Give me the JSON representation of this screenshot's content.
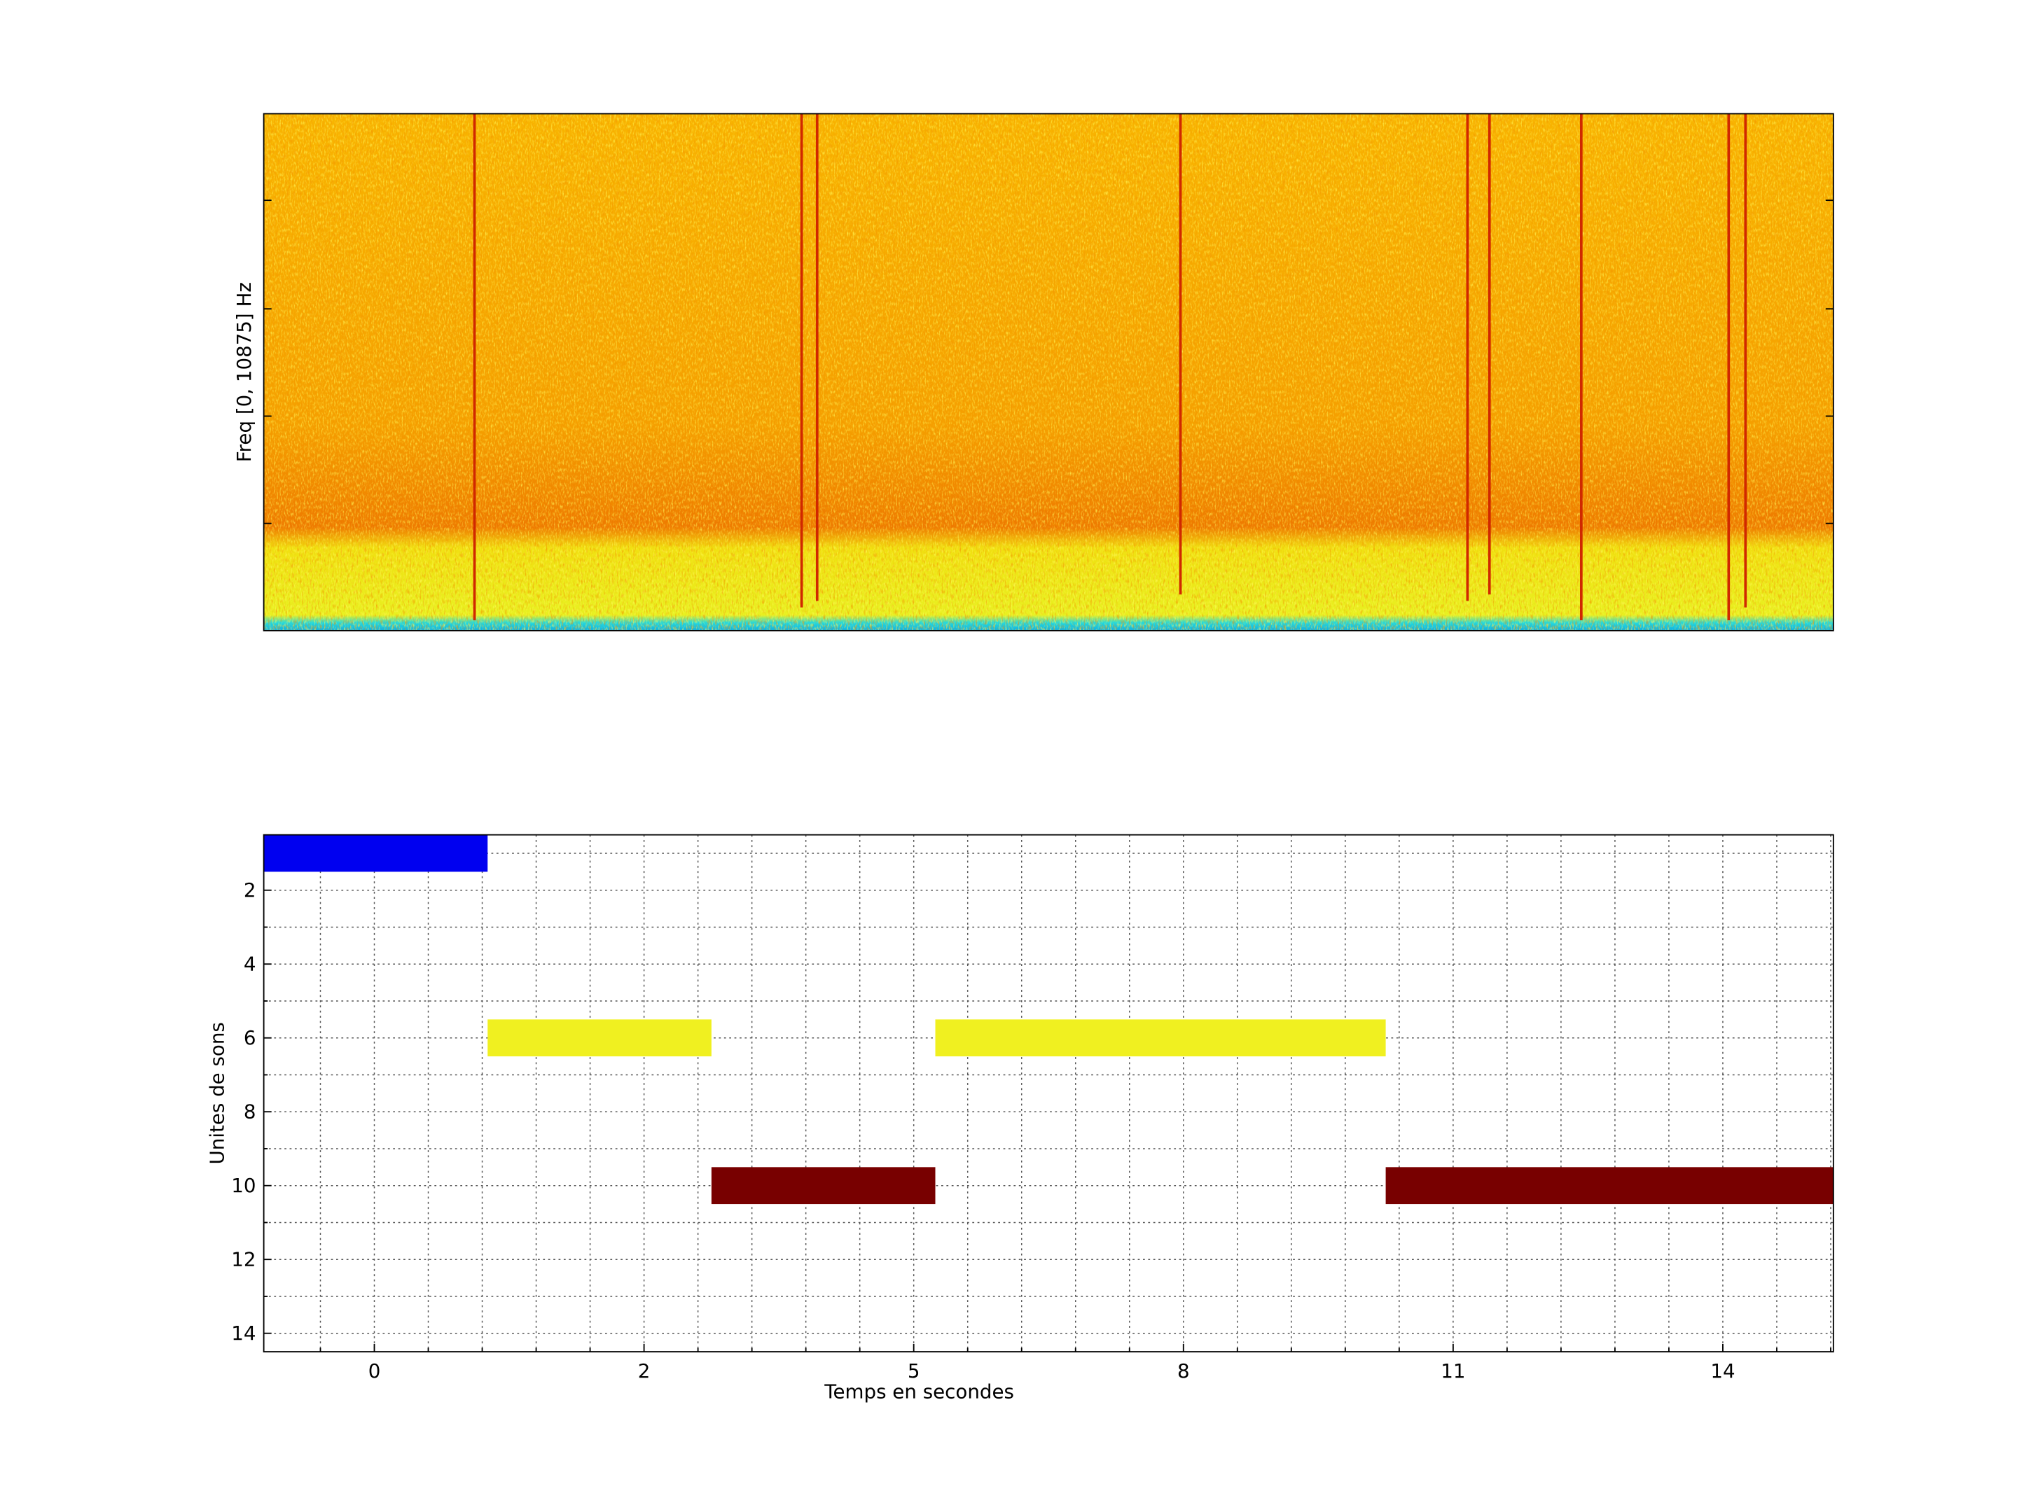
{
  "spectrogram": {
    "ylabel": "Freq [0, 10875] Hz"
  },
  "chart_data": {
    "type": "gantt",
    "xlabel": "Temps en secondes",
    "ylabel": "Unites de sons",
    "xlim": [
      -0.41,
      5.41
    ],
    "ylim": [
      0.5,
      14.5
    ],
    "y_reversed": true,
    "grid": true,
    "xticks": [
      {
        "value": 0,
        "label": "0"
      },
      {
        "value": 1,
        "label": "2"
      },
      {
        "value": 2,
        "label": "5"
      },
      {
        "value": 3,
        "label": "8"
      },
      {
        "value": 4,
        "label": "11"
      },
      {
        "value": 5,
        "label": "14"
      }
    ],
    "yticks": [
      2,
      4,
      6,
      8,
      10,
      12,
      14
    ],
    "xminorticks": [
      -0.2,
      0.2,
      0.4,
      0.6,
      0.8,
      1.2,
      1.4,
      1.6,
      1.8,
      2.2,
      2.4,
      2.6,
      2.8,
      3.2,
      3.4,
      3.6,
      3.8,
      4.2,
      4.4,
      4.6,
      4.8,
      5.2,
      5.4
    ],
    "yminorticks": [
      1,
      3,
      5,
      7,
      9,
      11,
      13
    ],
    "bars": [
      {
        "y": 1,
        "x0": -0.41,
        "x1": 0.42,
        "color": "#0000f0"
      },
      {
        "y": 6,
        "x0": 0.42,
        "x1": 1.25,
        "color": "#f0f020"
      },
      {
        "y": 10,
        "x0": 1.25,
        "x1": 2.08,
        "color": "#780000"
      },
      {
        "y": 6,
        "x0": 2.08,
        "x1": 3.75,
        "color": "#f0f020"
      },
      {
        "y": 10,
        "x0": 3.75,
        "x1": 5.41,
        "color": "#780000"
      }
    ]
  }
}
